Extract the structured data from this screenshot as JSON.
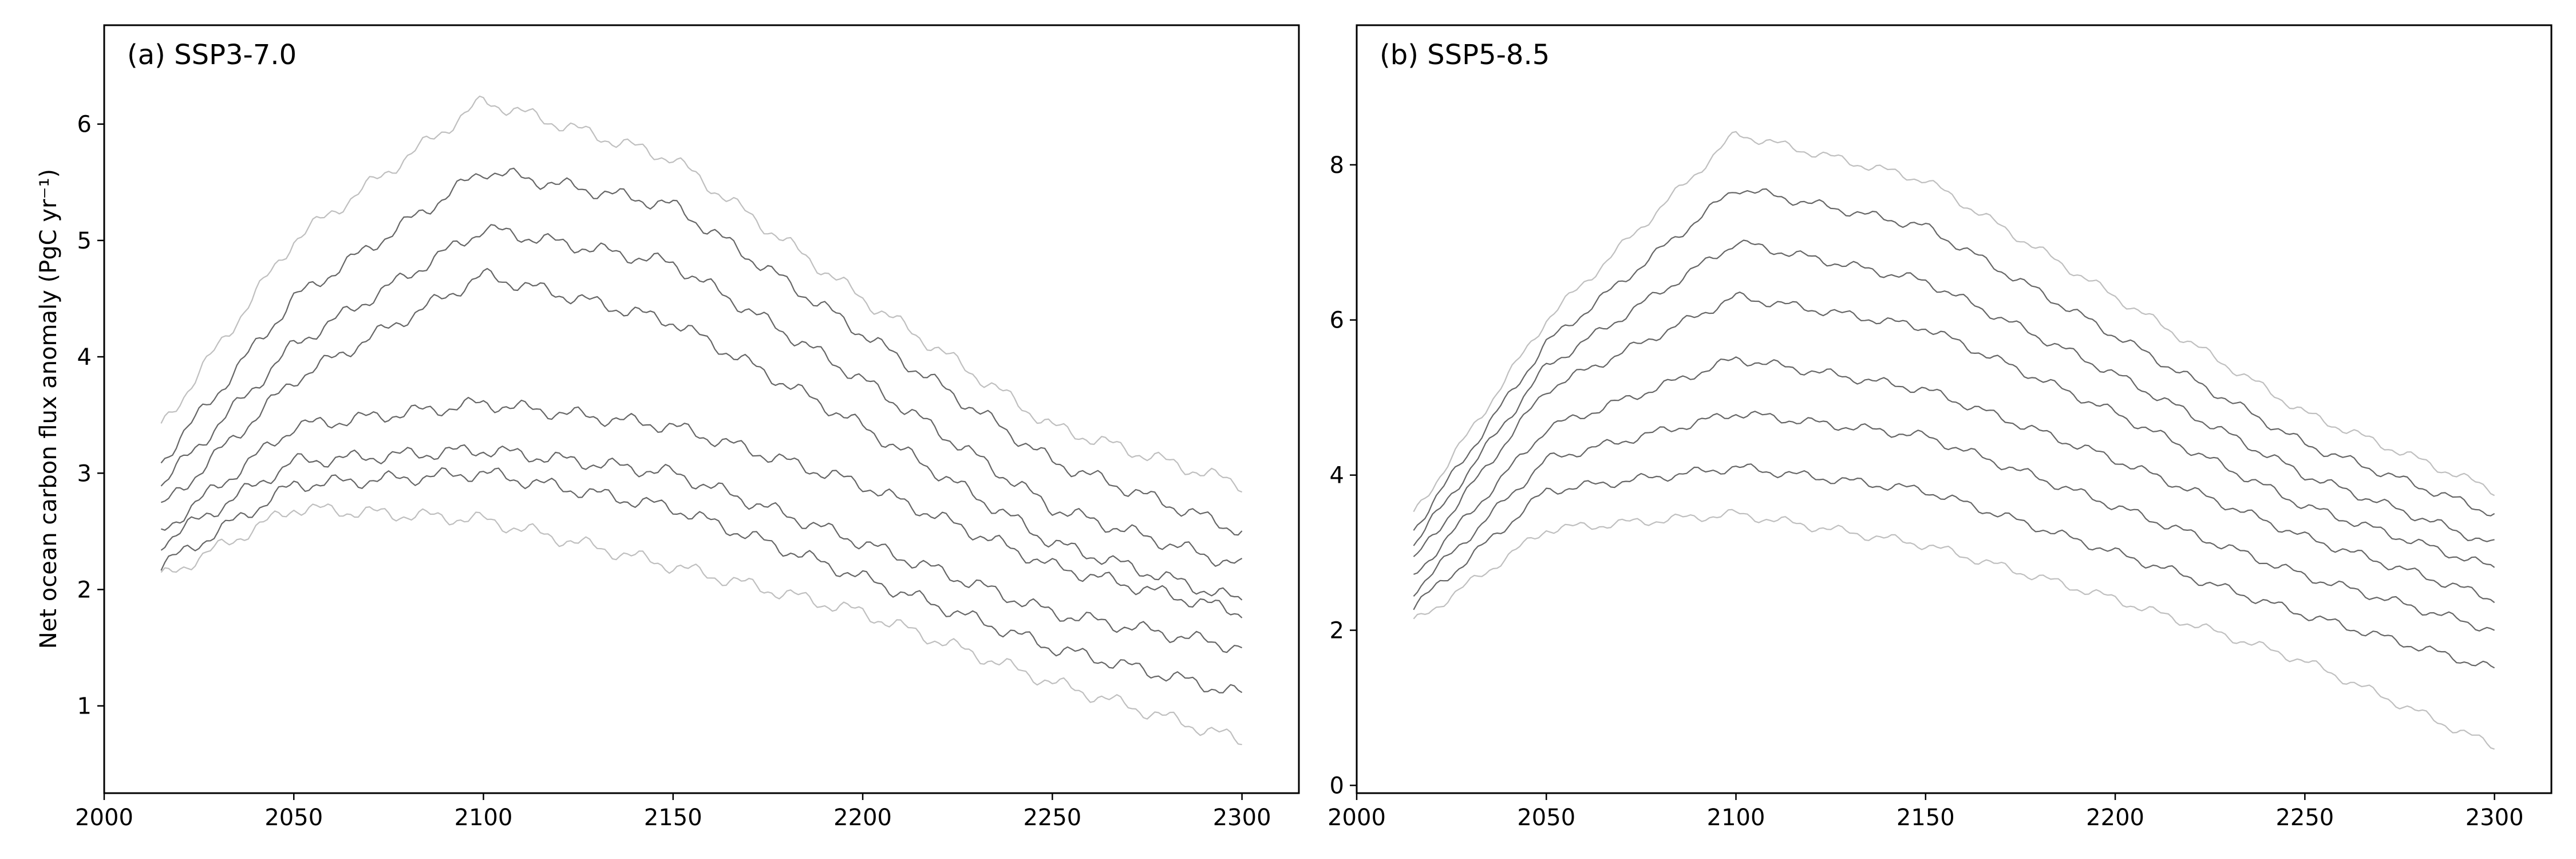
{
  "chart_data": [
    {
      "type": "line",
      "panel_label": "(a) SSP3-7.0",
      "ylabel": "Net ocean carbon flux anomaly (PgC yr⁻¹)",
      "xlabel": "",
      "xlim": [
        2000,
        2315
      ],
      "ylim": [
        0.25,
        6.85
      ],
      "xticks": [
        2000,
        2050,
        2100,
        2150,
        2200,
        2250,
        2300
      ],
      "yticks": [
        1,
        2,
        3,
        4,
        5,
        6
      ],
      "grid": false,
      "legend": "none",
      "line_color": "#000000",
      "x_range": [
        2015,
        2300
      ],
      "note_series": "ensemble of many thin semi-transparent member trajectories; representative envelope listed",
      "series": [
        {
          "x": [
            2015,
            2050,
            2100,
            2150,
            2200,
            2250,
            2300
          ],
          "values": [
            3.4,
            5.0,
            6.2,
            5.7,
            4.5,
            3.4,
            2.9
          ]
        },
        {
          "x": [
            2015,
            2050,
            2100,
            2150,
            2200,
            2250,
            2300
          ],
          "values": [
            3.1,
            4.5,
            5.6,
            5.3,
            4.2,
            3.1,
            2.5
          ]
        },
        {
          "x": [
            2015,
            2050,
            2100,
            2150,
            2200,
            2250,
            2300
          ],
          "values": [
            2.9,
            4.1,
            5.1,
            4.8,
            3.8,
            2.7,
            2.2
          ]
        },
        {
          "x": [
            2015,
            2050,
            2100,
            2150,
            2200,
            2250,
            2300
          ],
          "values": [
            2.7,
            3.8,
            4.7,
            4.3,
            3.4,
            2.4,
            1.9
          ]
        },
        {
          "x": [
            2015,
            2050,
            2100,
            2150,
            2200,
            2250,
            2300
          ],
          "values": [
            2.5,
            3.4,
            3.6,
            3.4,
            2.9,
            2.2,
            1.8
          ]
        },
        {
          "x": [
            2015,
            2050,
            2100,
            2150,
            2200,
            2250,
            2300
          ],
          "values": [
            2.4,
            3.1,
            3.2,
            3.0,
            2.4,
            1.8,
            1.5
          ]
        },
        {
          "x": [
            2015,
            2050,
            2100,
            2150,
            2200,
            2250,
            2300
          ],
          "values": [
            2.2,
            2.9,
            3.0,
            2.7,
            2.1,
            1.5,
            1.1
          ]
        },
        {
          "x": [
            2015,
            2050,
            2100,
            2150,
            2200,
            2250,
            2300
          ],
          "values": [
            2.1,
            2.7,
            2.6,
            2.2,
            1.8,
            1.2,
            0.7
          ]
        }
      ]
    },
    {
      "type": "line",
      "panel_label": "(b) SSP5-8.5",
      "ylabel": "",
      "xlabel": "",
      "xlim": [
        2000,
        2315
      ],
      "ylim": [
        -0.1,
        9.8
      ],
      "xticks": [
        2000,
        2050,
        2100,
        2150,
        2200,
        2250,
        2300
      ],
      "yticks": [
        0,
        2,
        4,
        6,
        8
      ],
      "grid": false,
      "legend": "none",
      "line_color": "#000000",
      "x_range": [
        2015,
        2300
      ],
      "note_series": "ensemble of many thin semi-transparent member trajectories; representative envelope listed",
      "series": [
        {
          "x": [
            2015,
            2050,
            2100,
            2150,
            2200,
            2250,
            2300
          ],
          "values": [
            3.5,
            6.0,
            8.4,
            7.8,
            6.3,
            4.8,
            3.8
          ]
        },
        {
          "x": [
            2015,
            2050,
            2100,
            2150,
            2200,
            2250,
            2300
          ],
          "values": [
            3.3,
            5.7,
            7.7,
            7.2,
            5.8,
            4.4,
            3.5
          ]
        },
        {
          "x": [
            2015,
            2050,
            2100,
            2150,
            2200,
            2250,
            2300
          ],
          "values": [
            3.1,
            5.4,
            7.0,
            6.5,
            5.3,
            4.0,
            3.1
          ]
        },
        {
          "x": [
            2015,
            2050,
            2100,
            2150,
            2200,
            2250,
            2300
          ],
          "values": [
            2.9,
            5.1,
            6.3,
            5.9,
            4.8,
            3.6,
            2.8
          ]
        },
        {
          "x": [
            2015,
            2050,
            2100,
            2150,
            2200,
            2250,
            2300
          ],
          "values": [
            2.7,
            4.6,
            5.5,
            5.1,
            4.2,
            3.2,
            2.4
          ]
        },
        {
          "x": [
            2015,
            2050,
            2100,
            2150,
            2200,
            2250,
            2300
          ],
          "values": [
            2.5,
            4.2,
            4.8,
            4.5,
            3.6,
            2.7,
            2.0
          ]
        },
        {
          "x": [
            2015,
            2050,
            2100,
            2150,
            2200,
            2250,
            2300
          ],
          "values": [
            2.3,
            3.8,
            4.1,
            3.8,
            3.0,
            2.2,
            1.5
          ]
        },
        {
          "x": [
            2015,
            2050,
            2100,
            2150,
            2200,
            2250,
            2300
          ],
          "values": [
            2.1,
            3.3,
            3.5,
            3.1,
            2.4,
            1.6,
            0.5
          ]
        }
      ]
    }
  ]
}
